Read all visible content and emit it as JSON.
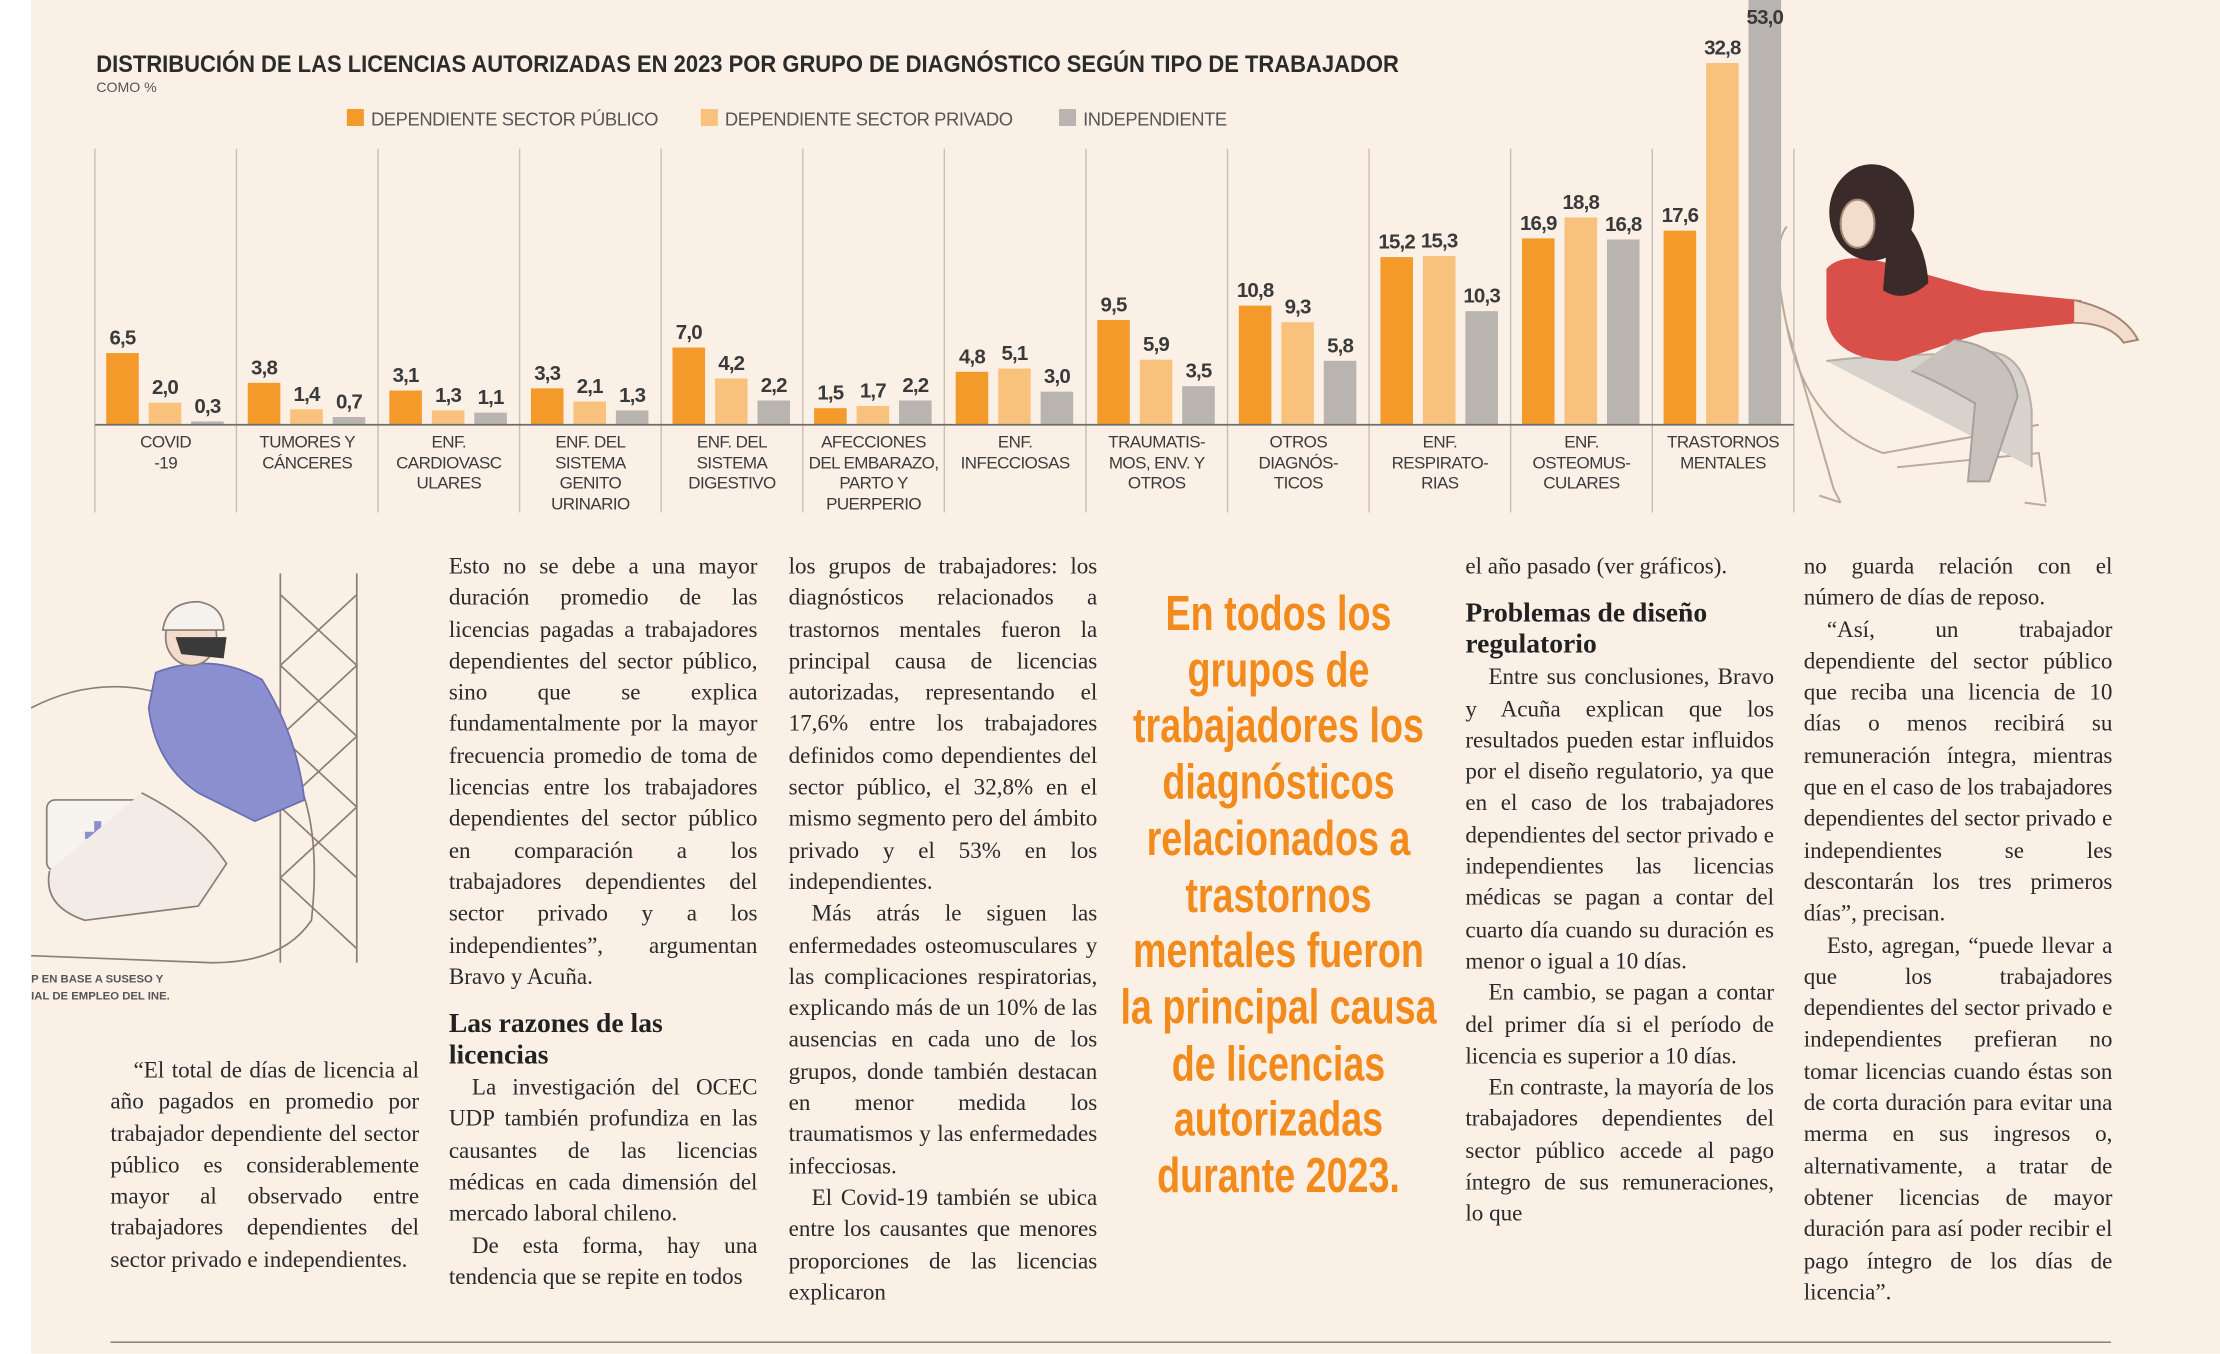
{
  "chart_data": {
    "type": "bar",
    "title": "DISTRIBUCIÓN DE LAS LICENCIAS AUTORIZADAS EN 2023 POR GRUPO DE DIAGNÓSTICO SEGÚN TIPO DE TRABAJADOR",
    "subtitle": "COMO %",
    "categories": [
      "COVID\n-19",
      "TUMORES Y\nCÁNCERES",
      "ENF.\nCARDIOVASC\nULARES",
      "ENF. DEL\nSISTEMA\nGENITO\nURINARIO",
      "ENF. DEL\nSISTEMA\nDIGESTIVO",
      "AFECCIONES\nDEL EMBARAZO,\nPARTO Y\nPUERPERIO",
      "ENF.\nINFECCIOSAS",
      "TRAUMATIS-\nMOS, ENV. Y\nOTROS",
      "OTROS\nDIAGNÓS-\nTICOS",
      "ENF.\nRESPIRATO-\nRIAS",
      "ENF.\nOSTEOMUS-\nCULARES",
      "TRASTORNOS\nMENTALES"
    ],
    "series": [
      {
        "name": "DEPENDIENTE SECTOR PÚBLICO",
        "color": "#f39a2b",
        "values": [
          6.5,
          3.8,
          3.1,
          3.3,
          7.0,
          1.5,
          4.8,
          9.5,
          10.8,
          15.2,
          16.9,
          17.6
        ],
        "value_labels": [
          "6,5",
          "3,8",
          "3,1",
          "3,3",
          "7,0",
          "1,5",
          "4,8",
          "9,5",
          "10,8",
          "15,2",
          "16,9",
          "17,6"
        ]
      },
      {
        "name": "DEPENDIENTE SECTOR PRIVADO",
        "color": "#f9c27c",
        "values": [
          2.0,
          1.4,
          1.3,
          2.1,
          4.2,
          1.7,
          5.1,
          5.9,
          9.3,
          15.3,
          18.8,
          32.8
        ],
        "value_labels": [
          "2,0",
          "1,4",
          "1,3",
          "2,1",
          "4,2",
          "1,7",
          "5,1",
          "5,9",
          "9,3",
          "15,3",
          "18,8",
          "32,8"
        ]
      },
      {
        "name": "INDEPENDIENTE",
        "color": "#b9b4b0",
        "values": [
          0.3,
          0.7,
          1.1,
          1.3,
          2.2,
          2.2,
          3.0,
          3.5,
          5.8,
          10.3,
          16.8,
          53.0
        ],
        "value_labels": [
          "0,3",
          "0,7",
          "1,1",
          "1,3",
          "2,2",
          "2,2",
          "3,0",
          "3,5",
          "5,8",
          "10,3",
          "16,8",
          "53,0"
        ]
      }
    ],
    "ylim": [
      0,
      38
    ]
  },
  "source_note": [
    "P EN BASE A SUSESO Y",
    "IAL DE EMPLEO DEL INE."
  ],
  "pull_quote": "En todos los grupos de trabajadores los diagnósticos relacionados a trastornos mentales fueron la principal causa de licencias autorizadas durante 2023.",
  "columns": [
    [
      {
        "p": "“El total de días de licencia al año pagados en promedio por trabajador dependiente del sector público es considerablemente mayor al observado entre trabajadores dependientes del sector privado e independientes."
      }
    ],
    [
      {
        "p": "Esto no se debe a una mayor duración promedio de las licencias pagadas a trabajadores dependientes del sector público, sino que se explica fundamentalmente por la mayor frecuencia promedio de toma de licencias entre los trabajadores dependientes del sector público en comparación a los trabajadores dependientes del sector privado y a los independientes”, argumentan Bravo y Acuña."
      },
      {
        "heading": "Las razones de las licencias"
      },
      {
        "p": "La investigación del OCEC UDP también profundiza en las causantes de las licencias médicas en cada dimensión del mercado laboral chileno."
      },
      {
        "p": "De esta forma, hay una tendencia que se repite en todos"
      }
    ],
    [
      {
        "p": "los grupos de trabajadores: los diagnósticos relacionados a trastornos mentales fueron la principal causa de licencias autorizadas, representando el 17,6% entre los trabajadores definidos como dependientes del sector público, el 32,8% en el mismo segmento pero del ámbito privado y el 53% en los independientes."
      },
      {
        "p": "Más atrás le siguen las enfermedades osteomusculares y las complicaciones respiratorias, explicando más de un 10% de las ausencias en cada uno de los grupos, donde también destacan en menor medida los traumatismos y las enfermedades infecciosas."
      },
      {
        "p": "El Covid-19 también se ubica entre los causantes que menores proporciones de las licencias explicaron"
      }
    ],
    [
      {
        "p": "el año pasado (ver gráficos)."
      },
      {
        "heading": "Problemas de diseño regulatorio"
      },
      {
        "p": "Entre sus conclusiones, Bravo y Acuña explican que los resultados pueden estar influidos por el diseño regulatorio, ya que en el caso de los trabajadores dependientes del sector privado e independientes las licencias médicas se pagan a contar del cuarto día cuando su duración es menor o igual a 10 días."
      },
      {
        "p": "En cambio, se pagan a contar del primer día si el período de licencia es superior a 10 días."
      },
      {
        "p": "En contraste, la mayoría de los trabajadores dependientes del sector público accede al pago íntegro de sus remuneraciones, lo que"
      }
    ],
    [
      {
        "p": "no guarda relación con el número de días de reposo."
      },
      {
        "p": "“Así, un trabajador dependiente del sector público que reciba una licencia de 10 días o menos recibirá su remuneración íntegra, mientras que en el caso de los trabajadores dependientes del sector privado e independientes se les descontarán los tres primeros días”, precisan."
      },
      {
        "p": "Esto, agregan, “puede llevar a que los trabajadores dependientes del sector privado e independientes prefieran no tomar licencias cuando éstas son de corta duración para evitar una merma en sus ingresos o, alternativamente, a tratar de obtener licencias de mayor duración para así poder recibir el pago íntegro de los días de licencia”."
      }
    ]
  ]
}
